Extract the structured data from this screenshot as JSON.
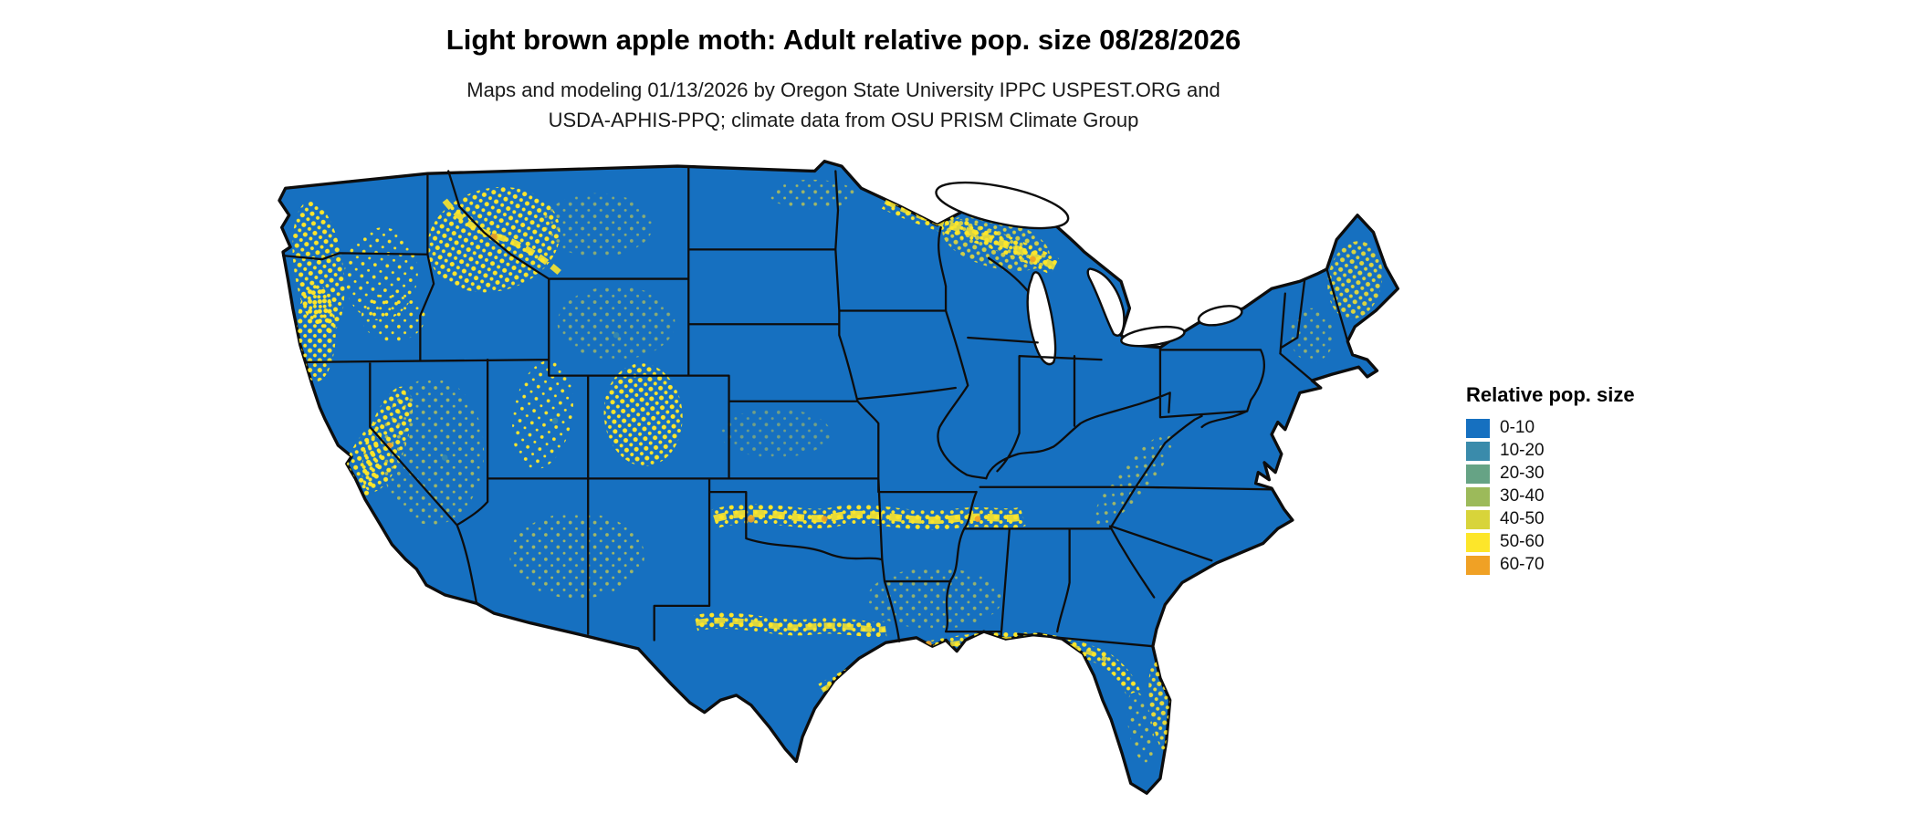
{
  "header": {
    "title": "Light brown apple moth: Adult relative pop. size 08/28/2026",
    "subtitle_line1": "Maps and modeling 01/13/2026 by Oregon State University IPPC USPEST.ORG and",
    "subtitle_line2": "USDA-APHIS-PPQ; climate data from OSU PRISM Climate Group"
  },
  "legend": {
    "title": "Relative pop. size",
    "items": [
      {
        "label": "0-10",
        "color": "#1670c0"
      },
      {
        "label": "10-20",
        "color": "#3a8bab"
      },
      {
        "label": "20-30",
        "color": "#66a385"
      },
      {
        "label": "30-40",
        "color": "#9cba5a"
      },
      {
        "label": "40-50",
        "color": "#d8d43a"
      },
      {
        "label": "50-60",
        "color": "#fde62a"
      },
      {
        "label": "60-70",
        "color": "#f0a125"
      }
    ]
  },
  "map": {
    "base_color": "#1670c0",
    "speckle_color": "#fde62a",
    "high_color": "#f0a125",
    "teal_color": "#3a8bab",
    "border_color": "#0d0d0d",
    "water_color": "#ffffff"
  }
}
